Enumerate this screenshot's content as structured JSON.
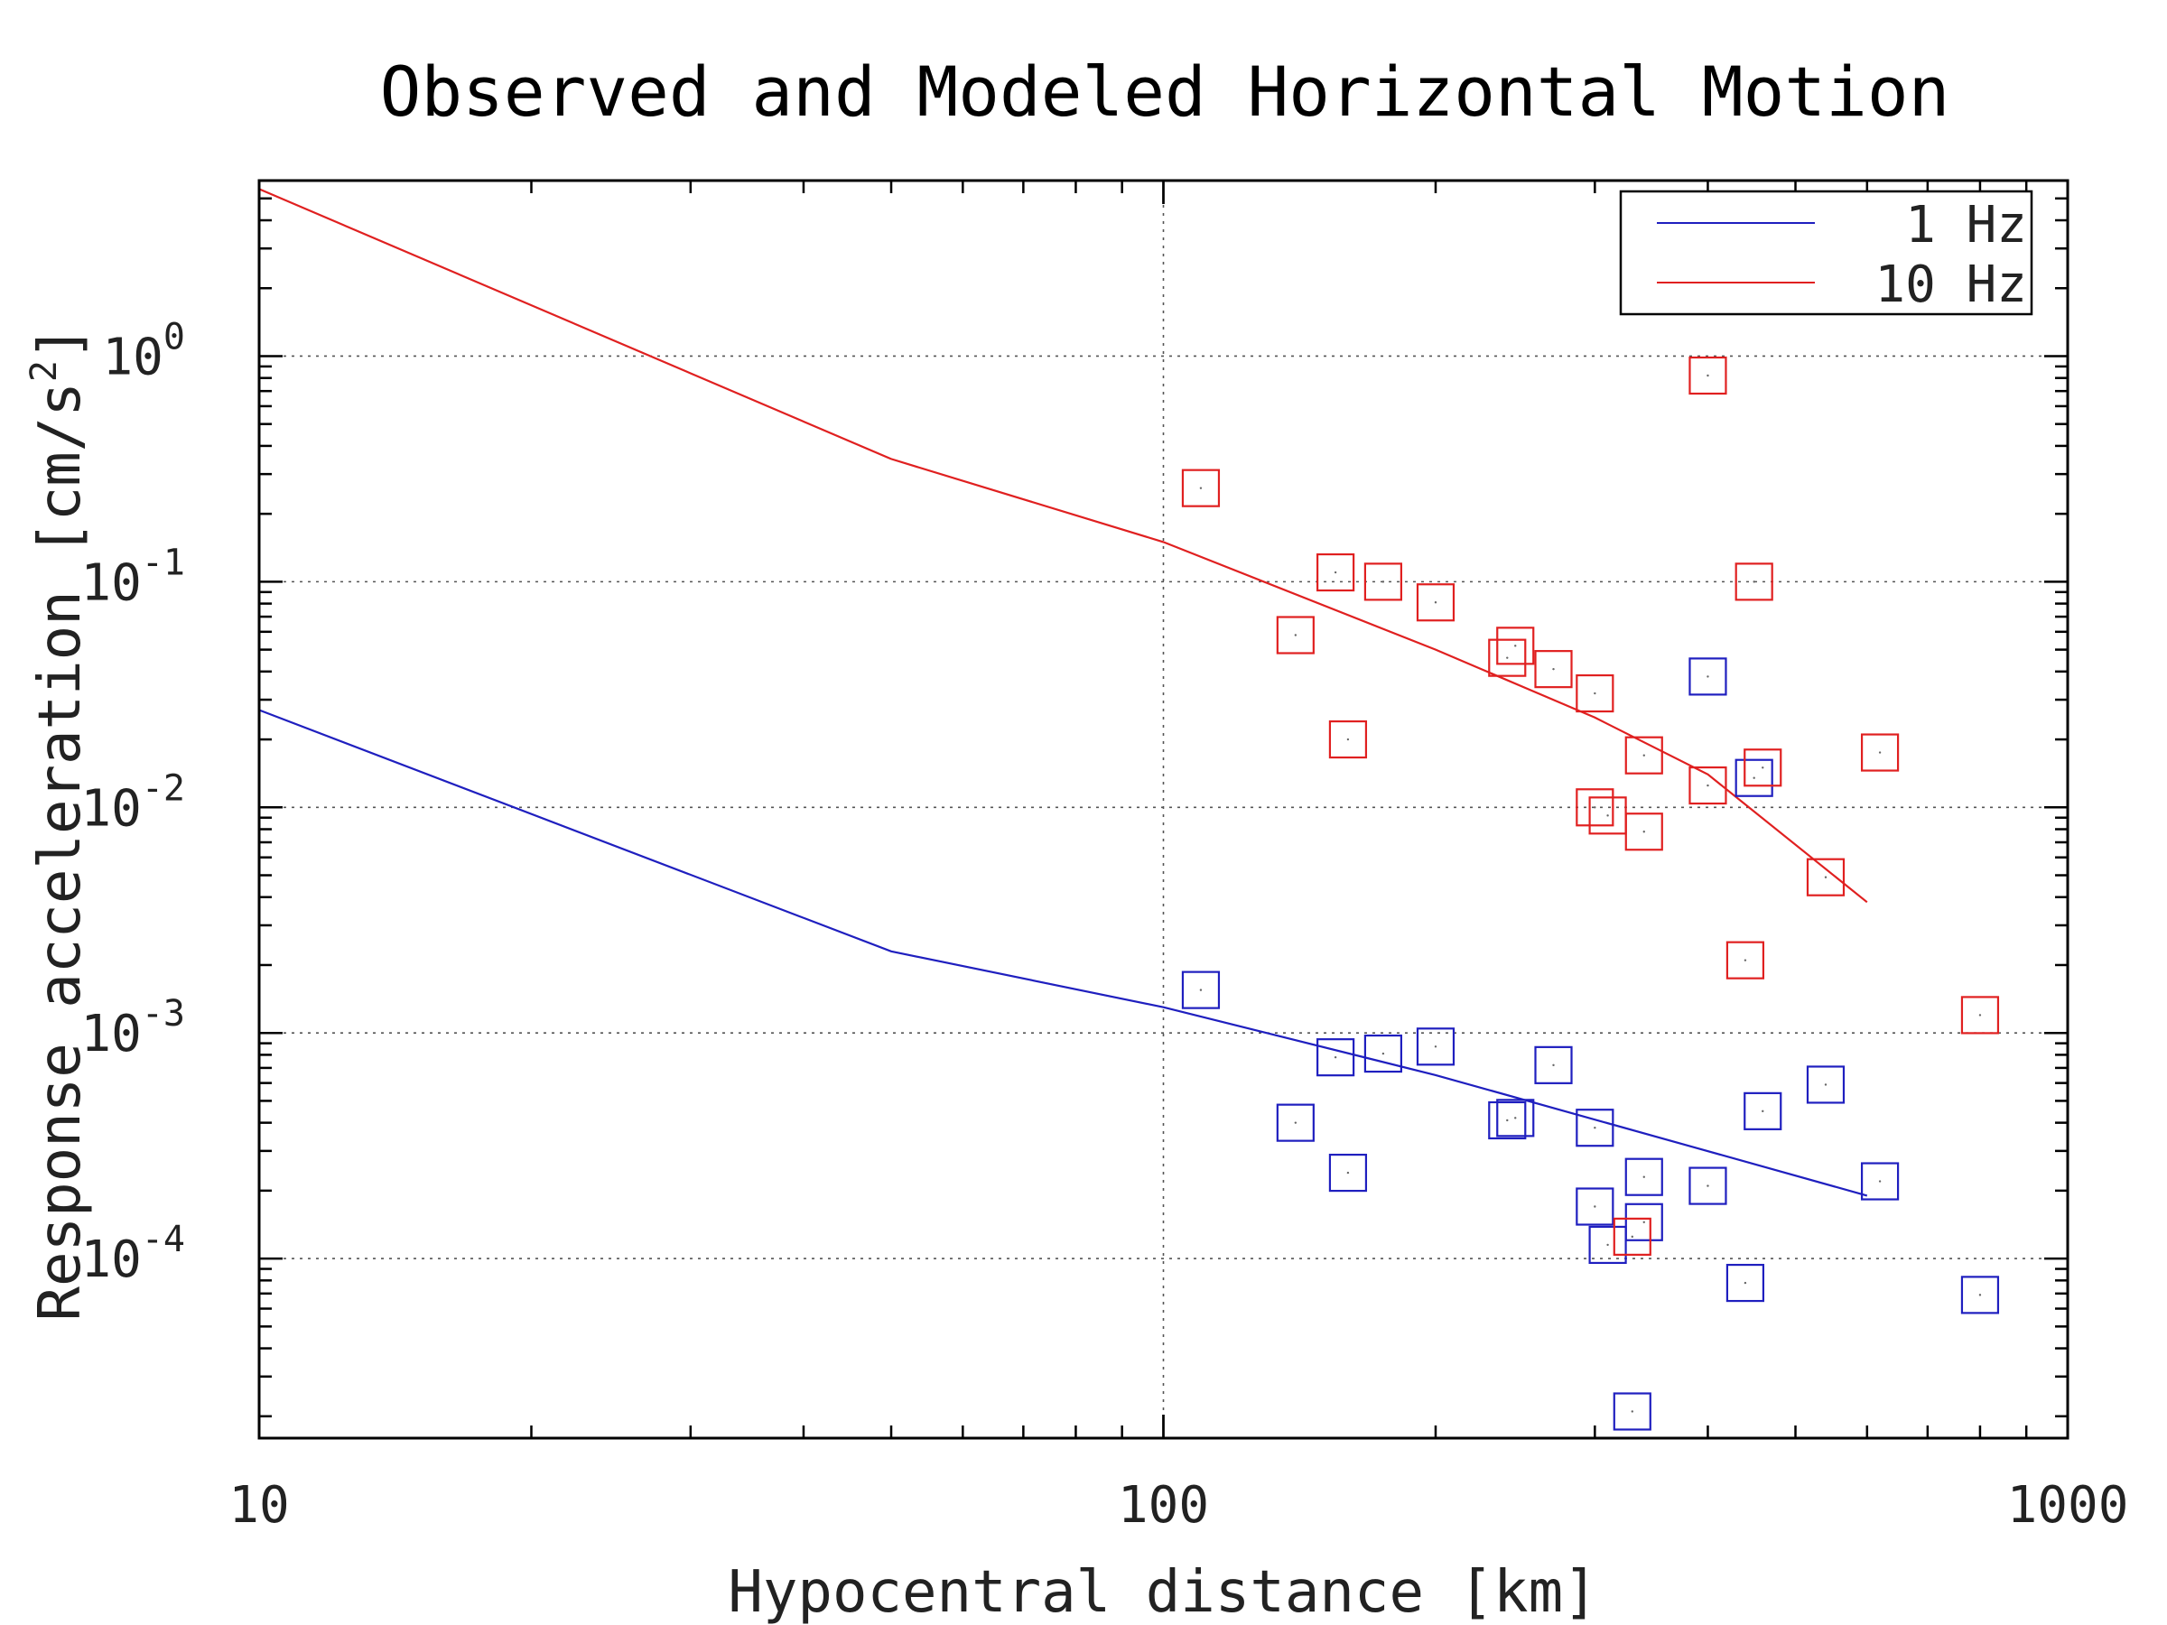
{
  "chart_data": {
    "type": "scatter",
    "title": "Observed and Modeled Horizontal Motion",
    "xlabel": "Hypocentral distance [km]",
    "ylabel_prefix": "Response acceleration [cm/s",
    "ylabel_sup": "2",
    "ylabel_suffix": "]",
    "xscale": "log",
    "yscale": "log",
    "xlim": [
      10,
      1000
    ],
    "ylim": [
      1.6e-05,
      6
    ],
    "x_tick_labels": [
      "10",
      "100",
      "1000"
    ],
    "y_tick_labels": [
      {
        "base": "10",
        "exp": "0"
      },
      {
        "base": "10",
        "exp": "-1"
      },
      {
        "base": "10",
        "exp": "-2"
      },
      {
        "base": "10",
        "exp": "-3"
      },
      {
        "base": "10",
        "exp": "-4"
      }
    ],
    "grid": "dotted",
    "legend_position": "top-right",
    "series": [
      {
        "name": "1 Hz",
        "color": "#1f1fbf",
        "line": {
          "x": [
            10,
            50,
            100,
            200,
            600
          ],
          "y": [
            0.027,
            0.0023,
            0.0013,
            0.00065,
            0.00019
          ]
        },
        "points": {
          "x": [
            110,
            140,
            155,
            160,
            175,
            200,
            240,
            245,
            270,
            300,
            300,
            310,
            330,
            340,
            340,
            400,
            400,
            440,
            450,
            460,
            540,
            620,
            800
          ],
          "y": [
            0.00155,
            0.0004,
            0.00078,
            0.00024,
            0.00081,
            0.00087,
            0.00041,
            0.00042,
            0.00072,
            0.00038,
            0.00017,
            0.000115,
            2.1e-05,
            0.000145,
            0.00023,
            0.038,
            0.00021,
            7.8e-05,
            0.0135,
            0.00045,
            0.00059,
            0.00022,
            6.9e-05
          ]
        }
      },
      {
        "name": "10 Hz",
        "color": "#e02020",
        "line": {
          "x": [
            10,
            50,
            100,
            200,
            300,
            400,
            600
          ],
          "y": [
            5.5,
            0.35,
            0.15,
            0.05,
            0.025,
            0.014,
            0.0038
          ]
        },
        "points": {
          "x": [
            110,
            140,
            155,
            160,
            175,
            200,
            240,
            245,
            270,
            300,
            300,
            310,
            330,
            340,
            340,
            400,
            400,
            440,
            450,
            460,
            540,
            620,
            800
          ],
          "y": [
            0.26,
            0.058,
            0.11,
            0.02,
            0.1,
            0.081,
            0.046,
            0.052,
            0.041,
            0.032,
            0.01,
            0.0092,
            0.000125,
            0.0078,
            0.017,
            0.82,
            0.0125,
            0.0021,
            0.1,
            0.015,
            0.0049,
            0.0175,
            0.0012
          ]
        }
      }
    ]
  }
}
